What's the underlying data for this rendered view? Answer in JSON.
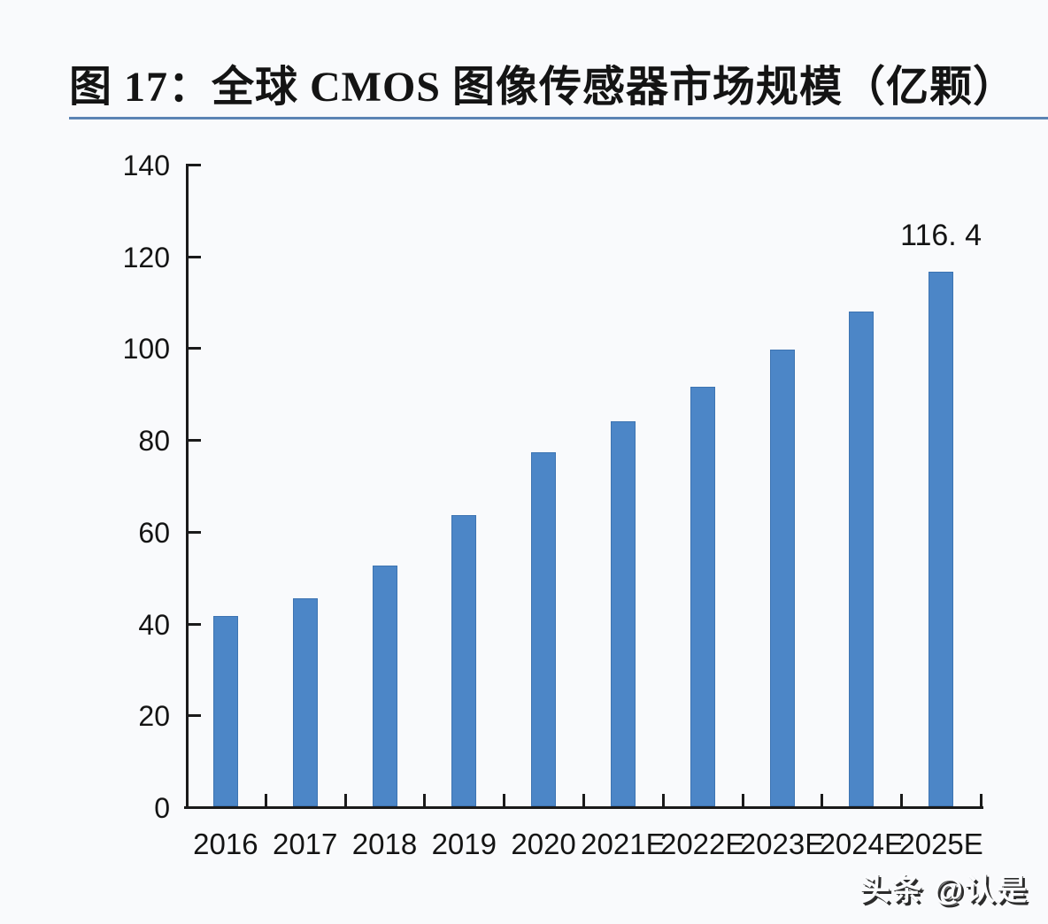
{
  "page": {
    "background": "#f9fafc",
    "watermark": "头条 @认是"
  },
  "chart_data": {
    "type": "bar",
    "title": "图 17：全球 CMOS 图像传感器市场规模（亿颗）",
    "unit_label": "亿颗",
    "categories": [
      "2016",
      "2017",
      "2018",
      "2019",
      "2020",
      "2021E",
      "2022E",
      "2023E",
      "2024E",
      "2025E"
    ],
    "series": [
      {
        "name": "全球CMOS图像传感器市场规模",
        "values": [
          41.4,
          45.4,
          52.4,
          63.4,
          77.2,
          83.9,
          91.4,
          99.5,
          107.7,
          116.4
        ]
      }
    ],
    "data_label": {
      "category": "2025E",
      "text": "116. 4"
    },
    "ylim": [
      0,
      140
    ],
    "yticks": [
      0,
      20,
      40,
      60,
      80,
      100,
      120,
      140
    ],
    "grid": false,
    "legend_position": "none",
    "bar_color": "#4c86c7",
    "bar_border_color": "#3d74b2",
    "axis_color": "#1a1a1a",
    "title_underline_color": "#5b84b4"
  }
}
